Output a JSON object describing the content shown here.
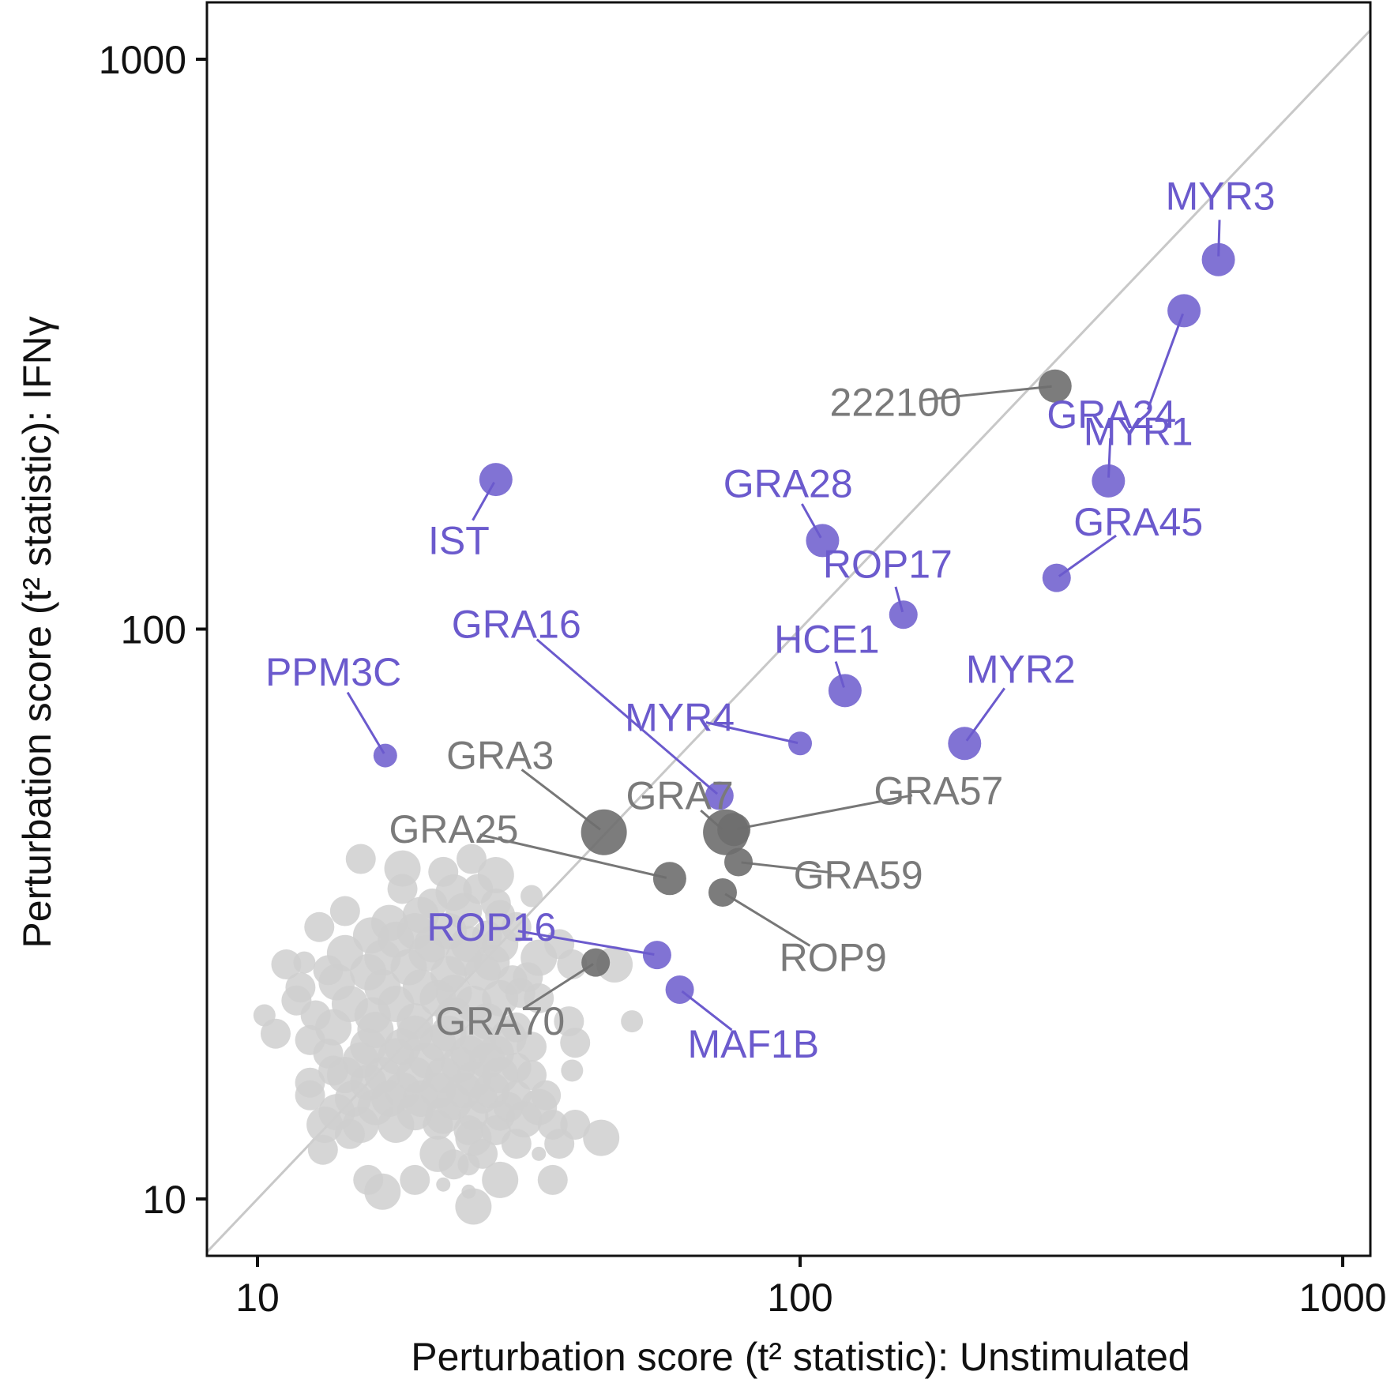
{
  "chart_data": {
    "type": "scatter",
    "x_scale": "log",
    "y_scale": "log",
    "xlim": [
      8.1,
      1200
    ],
    "ylim": [
      8.1,
      1200
    ],
    "xlabel": "Perturbation score (t² statistic): Unstimulated",
    "ylabel": "Perturbation score (t² statistic): IFNγ",
    "x_ticks": [
      {
        "value": 10,
        "label": "10"
      },
      {
        "value": 100,
        "label": "100"
      },
      {
        "value": 1000,
        "label": "1000"
      }
    ],
    "y_ticks": [
      {
        "value": 10,
        "label": "10"
      },
      {
        "value": 100,
        "label": "100"
      },
      {
        "value": 1000,
        "label": "1000"
      }
    ],
    "reference_line": "y = x",
    "grid": false,
    "legend": "none",
    "colors": {
      "highlight": "#6B5ACD",
      "labeled_other": "#6E6E6E",
      "background": "#CFCFCF",
      "diagonal": "#C8C8C8",
      "label_gray": "#7A7A7A"
    },
    "labeled_points": [
      {
        "name": "MYR3",
        "x": 590,
        "y": 445,
        "group": "highlight",
        "size": "large",
        "label_pos": [
          595,
          575
        ]
      },
      {
        "name": "MYR1",
        "x": 510,
        "y": 362,
        "group": "highlight",
        "size": "large",
        "label_pos": [
          420,
          222
        ]
      },
      {
        "name": "222100",
        "x": 295,
        "y": 267,
        "group": "other",
        "size": "large",
        "label_pos": [
          150,
          250
        ]
      },
      {
        "name": "GRA24",
        "x": 370,
        "y": 182,
        "group": "highlight",
        "size": "large",
        "label_pos": [
          375,
          238
        ]
      },
      {
        "name": "IST",
        "x": 27.5,
        "y": 183,
        "group": "highlight",
        "size": "large",
        "label_pos": [
          23.5,
          143
        ]
      },
      {
        "name": "GRA28",
        "x": 110,
        "y": 143,
        "group": "highlight",
        "size": "large",
        "label_pos": [
          95,
          180
        ]
      },
      {
        "name": "GRA45",
        "x": 297,
        "y": 123,
        "group": "highlight",
        "size": "medium",
        "label_pos": [
          420,
          154
        ]
      },
      {
        "name": "ROP17",
        "x": 155,
        "y": 106,
        "group": "highlight",
        "size": "medium",
        "label_pos": [
          145,
          130
        ]
      },
      {
        "name": "GRA16",
        "x": 71,
        "y": 51,
        "group": "highlight",
        "size": "medium",
        "label_pos": [
          30,
          102
        ]
      },
      {
        "name": "HCE1",
        "x": 121,
        "y": 78,
        "group": "highlight",
        "size": "large",
        "label_pos": [
          112,
          96
        ]
      },
      {
        "name": "MYR2",
        "x": 201,
        "y": 63,
        "group": "highlight",
        "size": "large",
        "label_pos": [
          255,
          85
        ]
      },
      {
        "name": "MYR4",
        "x": 100,
        "y": 63,
        "group": "highlight",
        "size": "small",
        "label_pos": [
          60,
          70
        ]
      },
      {
        "name": "PPM3C",
        "x": 17.2,
        "y": 60,
        "group": "highlight",
        "size": "small",
        "label_pos": [
          13.8,
          84
        ]
      },
      {
        "name": "GRA3",
        "x": 43.5,
        "y": 44,
        "group": "other",
        "size": "xlarge",
        "label_pos": [
          28,
          60
        ]
      },
      {
        "name": "GRA7",
        "x": 73,
        "y": 44,
        "group": "other",
        "size": "xlarge",
        "label_pos": [
          60,
          51
        ]
      },
      {
        "name": "GRA57",
        "x": 75.5,
        "y": 44.5,
        "group": "other",
        "size": "large",
        "label_pos": [
          180,
          52
        ]
      },
      {
        "name": "GRA25",
        "x": 57.5,
        "y": 36.5,
        "group": "other",
        "size": "large",
        "label_pos": [
          23,
          44.5
        ]
      },
      {
        "name": "GRA59",
        "x": 77,
        "y": 39,
        "group": "other",
        "size": "medium",
        "label_pos": [
          128,
          37
        ]
      },
      {
        "name": "ROP9",
        "x": 72,
        "y": 34.5,
        "group": "other",
        "size": "medium",
        "label_pos": [
          115,
          26.5
        ]
      },
      {
        "name": "ROP16",
        "x": 54.5,
        "y": 26.8,
        "group": "highlight",
        "size": "medium",
        "label_pos": [
          27,
          30
        ]
      },
      {
        "name": "GRA70",
        "x": 42,
        "y": 26,
        "group": "other",
        "size": "medium",
        "label_pos": [
          28,
          20.5
        ]
      },
      {
        "name": "MAF1B",
        "x": 60,
        "y": 23.3,
        "group": "highlight",
        "size": "medium",
        "label_pos": [
          82,
          18.7
        ]
      }
    ],
    "background_points": [
      [
        15.5,
        39.5
      ],
      [
        24.8,
        39.5
      ],
      [
        18.5,
        38
      ],
      [
        22,
        37.5
      ],
      [
        27.5,
        37
      ],
      [
        27.5,
        33
      ],
      [
        18.5,
        35
      ],
      [
        23,
        34.5
      ],
      [
        25.5,
        35
      ],
      [
        32,
        34
      ],
      [
        14.5,
        32
      ],
      [
        21,
        33
      ],
      [
        20,
        31.5
      ],
      [
        24,
        32
      ],
      [
        28,
        31.5
      ],
      [
        17.5,
        30.5
      ],
      [
        19.5,
        29.5
      ],
      [
        22.5,
        29.5
      ],
      [
        26.5,
        29
      ],
      [
        30,
        30
      ],
      [
        13,
        30
      ],
      [
        16.2,
        29
      ],
      [
        18,
        28.5
      ],
      [
        21,
        28
      ],
      [
        24.5,
        28
      ],
      [
        28,
        28
      ],
      [
        36,
        28
      ],
      [
        12.2,
        26
      ],
      [
        14.5,
        27
      ],
      [
        17,
        26.5
      ],
      [
        20.5,
        27
      ],
      [
        24,
        26.5
      ],
      [
        27,
        26
      ],
      [
        33,
        26.5
      ],
      [
        38,
        25.8
      ],
      [
        45.5,
        25.8
      ],
      [
        11.3,
        25.8
      ],
      [
        13.5,
        25.2
      ],
      [
        16,
        25
      ],
      [
        19,
        25.5
      ],
      [
        22.5,
        24.8
      ],
      [
        26,
        25
      ],
      [
        29.5,
        24.2
      ],
      [
        31.5,
        24.5
      ],
      [
        12,
        23.5
      ],
      [
        14,
        24
      ],
      [
        17,
        23.5
      ],
      [
        20,
        23.5
      ],
      [
        23,
        23
      ],
      [
        28,
        22.5
      ],
      [
        30.5,
        23
      ],
      [
        11.8,
        22.3
      ],
      [
        14.8,
        22
      ],
      [
        18,
        22
      ],
      [
        21.5,
        22.5
      ],
      [
        25,
        22
      ],
      [
        33,
        22.5
      ],
      [
        10.3,
        21
      ],
      [
        12.8,
        21
      ],
      [
        16.3,
        21
      ],
      [
        19.5,
        20.5
      ],
      [
        23,
        21
      ],
      [
        26.5,
        20.5
      ],
      [
        30,
        20
      ],
      [
        37.5,
        20.5
      ],
      [
        13.8,
        20
      ],
      [
        16.5,
        19.8
      ],
      [
        19.5,
        19.5
      ],
      [
        22.5,
        19.5
      ],
      [
        25.5,
        19
      ],
      [
        29,
        19.2
      ],
      [
        10.8,
        19.5
      ],
      [
        12.5,
        19
      ],
      [
        16,
        18.5
      ],
      [
        18.5,
        18.5
      ],
      [
        21.5,
        18.8
      ],
      [
        24.5,
        18
      ],
      [
        27.5,
        18
      ],
      [
        32,
        18.5
      ],
      [
        38.5,
        18.8
      ],
      [
        49,
        20.5
      ],
      [
        13.5,
        18
      ],
      [
        15.5,
        17.5
      ],
      [
        18,
        17.8
      ],
      [
        20.5,
        17.5
      ],
      [
        23.5,
        17.2
      ],
      [
        26.5,
        17.5
      ],
      [
        30,
        17
      ],
      [
        12.5,
        16
      ],
      [
        14.5,
        16.5
      ],
      [
        17,
        16.5
      ],
      [
        19.5,
        16.5
      ],
      [
        22,
        16.5
      ],
      [
        25,
        16.2
      ],
      [
        28,
        16.5
      ],
      [
        32,
        16.5
      ],
      [
        13.8,
        16.8
      ],
      [
        38,
        16.8
      ],
      [
        16,
        16
      ],
      [
        18.5,
        15.5
      ],
      [
        21.5,
        15.5
      ],
      [
        24,
        15.5
      ],
      [
        27,
        15.5
      ],
      [
        30,
        15.2
      ],
      [
        34,
        15.2
      ],
      [
        12.5,
        15.2
      ],
      [
        15,
        15
      ],
      [
        17.5,
        15
      ],
      [
        20,
        15
      ],
      [
        23,
        14.8
      ],
      [
        26,
        15
      ],
      [
        29,
        14.5
      ],
      [
        33,
        14.5
      ],
      [
        14,
        14.2
      ],
      [
        16.5,
        14.5
      ],
      [
        19.5,
        14.2
      ],
      [
        22,
        14
      ],
      [
        25,
        14
      ],
      [
        28,
        14
      ],
      [
        31,
        13.8
      ],
      [
        13.3,
        13.5
      ],
      [
        15.5,
        13.5
      ],
      [
        18,
        13.5
      ],
      [
        21.5,
        13.5
      ],
      [
        24.5,
        13.2
      ],
      [
        27.5,
        13.2
      ],
      [
        35,
        13.5
      ],
      [
        38.5,
        13.5
      ],
      [
        14.8,
        13
      ],
      [
        25,
        12.8
      ],
      [
        30,
        12.5
      ],
      [
        36,
        12.5
      ],
      [
        43,
        12.8
      ],
      [
        13.2,
        12.2
      ],
      [
        21.5,
        12
      ],
      [
        26,
        12
      ],
      [
        33,
        12
      ],
      [
        24.5,
        11.5
      ],
      [
        23,
        11.5
      ],
      [
        16,
        10.8
      ],
      [
        19.5,
        10.8
      ],
      [
        28,
        10.8
      ],
      [
        35,
        10.8
      ],
      [
        17,
        10.3
      ],
      [
        24.5,
        10.3
      ],
      [
        25,
        9.7
      ],
      [
        22,
        10.6
      ]
    ],
    "background_sizes": [
      "m",
      "m",
      "l",
      "m",
      "l",
      "m",
      "m",
      "l",
      "m",
      "s",
      "m",
      "m",
      "l",
      "l",
      "m",
      "l",
      "l",
      "l",
      "m",
      "m",
      "m",
      "l",
      "l",
      "l",
      "l",
      "l",
      "m",
      "s",
      "l",
      "l",
      "l",
      "l",
      "l",
      "l",
      "m",
      "l",
      "m",
      "m",
      "l",
      "l",
      "l",
      "l",
      "m",
      "m",
      "m",
      "l",
      "l",
      "l",
      "l",
      "l",
      "m",
      "m",
      "l",
      "l",
      "l",
      "l",
      "m",
      "s",
      "m",
      "l",
      "l",
      "l",
      "l",
      "m",
      "m",
      "l",
      "l",
      "l",
      "l",
      "l",
      "l",
      "m",
      "m",
      "l",
      "l",
      "l",
      "l",
      "l",
      "m",
      "m",
      "s",
      "m",
      "l",
      "l",
      "l",
      "l",
      "l",
      "m",
      "m",
      "l",
      "l",
      "l",
      "l",
      "l",
      "l",
      "m",
      "m",
      "s",
      "l",
      "l",
      "l",
      "l",
      "l",
      "m",
      "m",
      "m",
      "l",
      "l",
      "l",
      "l",
      "m",
      "m",
      "l",
      "l",
      "l",
      "l",
      "l",
      "m",
      "m",
      "l",
      "l",
      "l",
      "l",
      "m",
      "m",
      "m",
      "m",
      "m",
      "m",
      "l",
      "m",
      "m",
      "l",
      "m",
      "l",
      "m",
      "xs",
      "s",
      "m",
      "m",
      "m",
      "l",
      "m",
      "l",
      "xs",
      "l",
      "xs"
    ]
  }
}
